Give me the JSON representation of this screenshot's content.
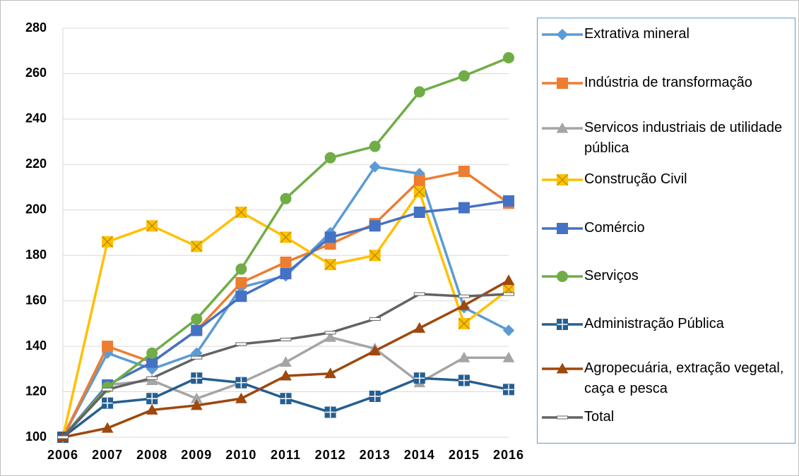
{
  "chart_data": {
    "type": "line",
    "categories": [
      "2006",
      "2007",
      "2008",
      "2009",
      "2010",
      "2011",
      "2012",
      "2013",
      "2014",
      "2015",
      "2016"
    ],
    "series": [
      {
        "name": "Extrativa mineral",
        "color": "#5B9BD5",
        "marker": "diamond",
        "values": [
          100,
          137,
          130,
          137,
          166,
          171,
          190,
          219,
          216,
          157,
          147
        ]
      },
      {
        "name": "Indústria de transformação",
        "color": "#ED7D31",
        "marker": "square",
        "values": [
          100,
          140,
          133,
          147,
          168,
          177,
          185,
          194,
          213,
          217,
          203
        ]
      },
      {
        "name": "Servicos industriais de utilidade pública",
        "color": "#A5A5A5",
        "marker": "triangle",
        "values": [
          100,
          123,
          125,
          117,
          124,
          133,
          144,
          139,
          124,
          135,
          135
        ]
      },
      {
        "name": "Construção Civil",
        "color": "#FFC000",
        "marker": "xsquare",
        "values": [
          100,
          186,
          193,
          184,
          199,
          188,
          176,
          180,
          208,
          150,
          165
        ]
      },
      {
        "name": "Comércio",
        "color": "#4472C4",
        "marker": "square",
        "values": [
          100,
          123,
          133,
          147,
          162,
          172,
          188,
          193,
          199,
          201,
          204
        ]
      },
      {
        "name": "Serviços",
        "color": "#70AD47",
        "marker": "circle",
        "values": [
          100,
          122,
          137,
          152,
          174,
          205,
          223,
          228,
          252,
          259,
          267
        ]
      },
      {
        "name": "Administração Pública",
        "color": "#255E91",
        "marker": "plussquare",
        "values": [
          100,
          115,
          117,
          126,
          124,
          117,
          111,
          118,
          126,
          125,
          121
        ]
      },
      {
        "name": "Agropecuária, extração vegetal, caça e pesca",
        "color": "#9E480E",
        "marker": "triangle",
        "values": [
          100,
          104,
          112,
          114,
          117,
          127,
          128,
          138,
          148,
          158,
          169
        ]
      },
      {
        "name": "Total",
        "color": "#636363",
        "marker": "dash",
        "values": [
          100,
          121,
          126,
          135,
          141,
          143,
          146,
          152,
          163,
          162,
          163
        ]
      }
    ],
    "ylim": [
      100,
      280
    ],
    "yticks": [
      100,
      120,
      140,
      160,
      180,
      200,
      220,
      240,
      260,
      280
    ],
    "grid": true,
    "legend": "right"
  }
}
